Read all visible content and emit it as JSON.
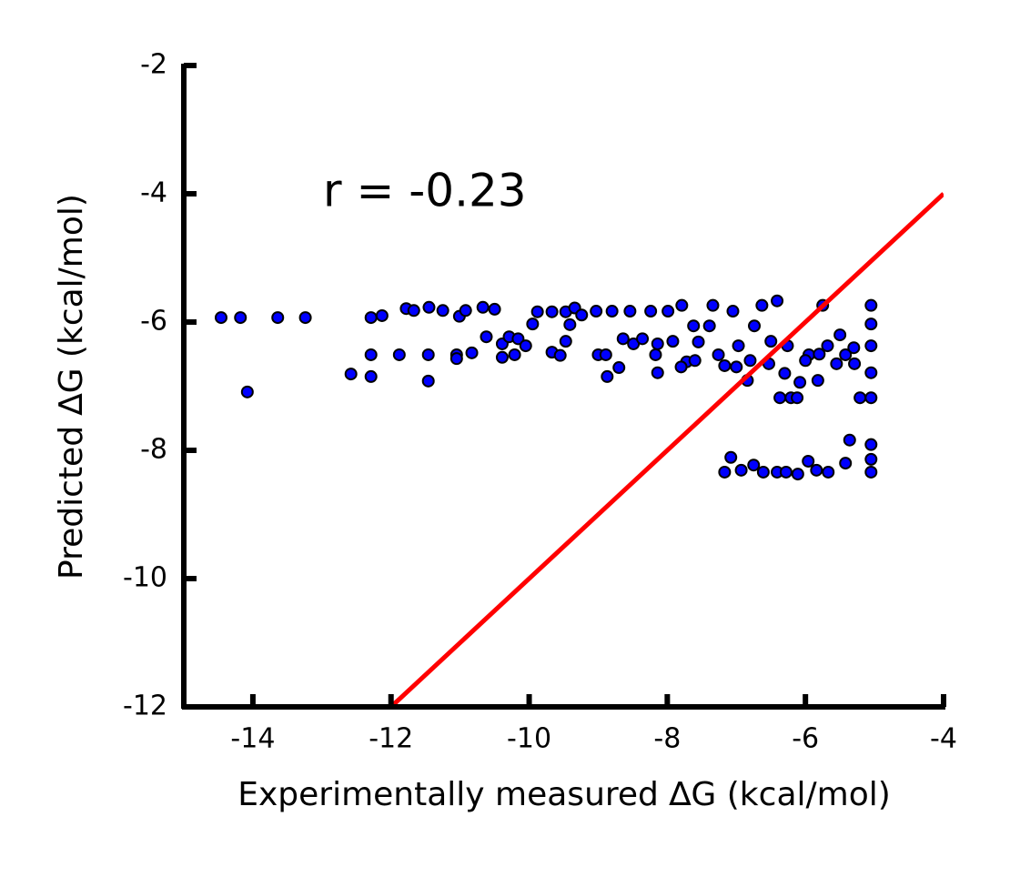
{
  "chart_data": {
    "type": "scatter",
    "annotation": "r = -0.23",
    "xlabel": "Experimentally measured ∆G (kcal/mol)",
    "ylabel": "Predicted ∆G (kcal/mol)",
    "xlim": [
      -15,
      -4
    ],
    "ylim": [
      -12,
      -2
    ],
    "xticks": [
      -14,
      -12,
      -10,
      -8,
      -6,
      -4
    ],
    "yticks": [
      -12,
      -10,
      -8,
      -6,
      -4,
      -2
    ],
    "color": "#0000ff",
    "edgecolor": "#000000",
    "x": [
      -14.46,
      -14.18,
      -14.08,
      -13.64,
      -13.24,
      -12.58,
      -12.29,
      -12.13,
      -12.29,
      -12.29,
      -11.88,
      -11.78,
      -11.67,
      -11.46,
      -11.46,
      -11.45,
      -11.25,
      -11.05,
      -11.05,
      -11.01,
      -10.92,
      -10.83,
      -10.67,
      -10.62,
      -10.5,
      -10.39,
      -10.39,
      -10.29,
      -10.21,
      -10.16,
      -10.05,
      -9.95,
      -9.88,
      -9.67,
      -9.67,
      -9.55,
      -9.47,
      -9.47,
      -9.41,
      -9.34,
      -9.24,
      -9.03,
      -9.0,
      -8.89,
      -8.87,
      -8.8,
      -8.7,
      -8.64,
      -8.54,
      -8.49,
      -8.36,
      -8.24,
      -8.17,
      -8.14,
      -8.14,
      -7.99,
      -7.92,
      -7.79,
      -7.72,
      -7.62,
      -7.55,
      -7.39,
      -7.34,
      -7.26,
      -7.17,
      -7.05,
      -6.97,
      -6.84,
      -6.74,
      -6.63,
      -6.53,
      -6.41,
      -6.37,
      -6.21,
      -6.12,
      -6.26,
      -6.08,
      -5.95,
      -5.82,
      -5.75,
      -5.68,
      -5.55,
      -5.42,
      -5.29,
      -5.21,
      -5.05,
      -5.05,
      -5.05,
      -5.05,
      -5.05,
      -7.17,
      -7.08,
      -6.93,
      -6.75,
      -6.61,
      -6.41,
      -6.28,
      -6.11,
      -5.96,
      -5.84,
      -5.67,
      -5.42,
      -5.36,
      -5.05,
      -5.05,
      -5.05,
      -7.6,
      -7.0,
      -6.5,
      -6.0,
      -5.5,
      -6.8,
      -7.8,
      -6.3,
      -5.8,
      -5.3
    ],
    "y": [
      -5.93,
      -5.93,
      -7.09,
      -5.93,
      -5.93,
      -6.81,
      -5.93,
      -5.9,
      -6.51,
      -6.85,
      -6.51,
      -5.79,
      -5.82,
      -6.51,
      -6.92,
      -5.77,
      -5.82,
      -6.51,
      -6.57,
      -5.91,
      -5.82,
      -6.48,
      -5.77,
      -6.23,
      -5.8,
      -6.55,
      -6.34,
      -6.23,
      -6.51,
      -6.26,
      -6.37,
      -6.03,
      -5.84,
      -5.84,
      -6.47,
      -6.52,
      -5.84,
      -6.3,
      -6.04,
      -5.78,
      -5.89,
      -5.83,
      -6.51,
      -6.51,
      -6.85,
      -5.83,
      -6.71,
      -6.26,
      -5.83,
      -6.34,
      -6.26,
      -5.83,
      -6.51,
      -6.79,
      -6.34,
      -5.83,
      -6.3,
      -5.74,
      -6.62,
      -6.06,
      -6.31,
      -6.06,
      -5.74,
      -6.51,
      -6.68,
      -5.83,
      -6.37,
      -6.91,
      -6.06,
      -5.74,
      -6.65,
      -5.67,
      -7.18,
      -7.18,
      -7.18,
      -6.37,
      -6.94,
      -6.51,
      -6.91,
      -5.74,
      -6.37,
      -6.65,
      -6.51,
      -6.65,
      -7.18,
      -5.74,
      -6.03,
      -6.37,
      -6.79,
      -7.18,
      -8.34,
      -8.11,
      -8.31,
      -8.23,
      -8.34,
      -8.34,
      -8.34,
      -8.37,
      -8.17,
      -8.31,
      -8.34,
      -8.2,
      -7.84,
      -7.91,
      -8.14,
      -8.34,
      -6.6,
      -6.7,
      -6.3,
      -6.6,
      -6.2,
      -6.6,
      -6.7,
      -6.8,
      -6.5,
      -6.4
    ],
    "reference_line": {
      "x": [
        -12,
        -4
      ],
      "y": [
        -12,
        -4
      ],
      "color": "#ff0000"
    }
  }
}
